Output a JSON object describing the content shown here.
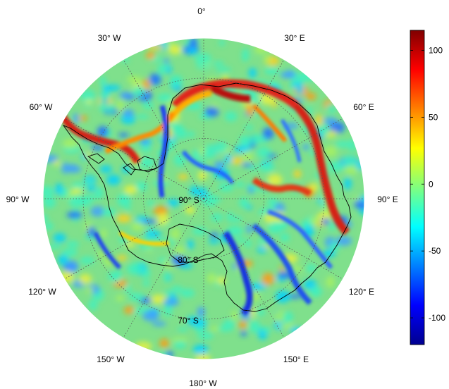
{
  "map": {
    "projection": "south-polar-stereographic",
    "grid": true,
    "center_label": "90° S",
    "meridian_labels": [
      {
        "lon": "0°",
        "text": "0°"
      },
      {
        "lon": "30° E",
        "text": "30° E"
      },
      {
        "lon": "60° E",
        "text": "60° E"
      },
      {
        "lon": "90° E",
        "text": "90° E"
      },
      {
        "lon": "120° E",
        "text": "120° E"
      },
      {
        "lon": "150° E",
        "text": "150° E"
      },
      {
        "lon": "180° W",
        "text": "180° W"
      },
      {
        "lon": "150° W",
        "text": "150° W"
      },
      {
        "lon": "120° W",
        "text": "120° W"
      },
      {
        "lon": "90° W",
        "text": "90° W"
      },
      {
        "lon": "60° W",
        "text": "60° W"
      },
      {
        "lon": "30° W",
        "text": "30° W"
      }
    ],
    "parallel_labels": [
      {
        "lat": "80° S",
        "text": "80° S"
      },
      {
        "lat": "70° S",
        "text": "70° S"
      }
    ]
  },
  "colorbar": {
    "colormap": "jet",
    "min": -120,
    "max": 115,
    "ticks": [
      {
        "value": 100,
        "text": "100"
      },
      {
        "value": 50,
        "text": "50"
      },
      {
        "value": 0,
        "text": "0"
      },
      {
        "value": -50,
        "text": "-50"
      },
      {
        "value": -100,
        "text": "-100"
      }
    ],
    "colors": [
      "#00008f",
      "#0000ff",
      "#00ffff",
      "#ffff00",
      "#ff0000",
      "#800000"
    ]
  }
}
